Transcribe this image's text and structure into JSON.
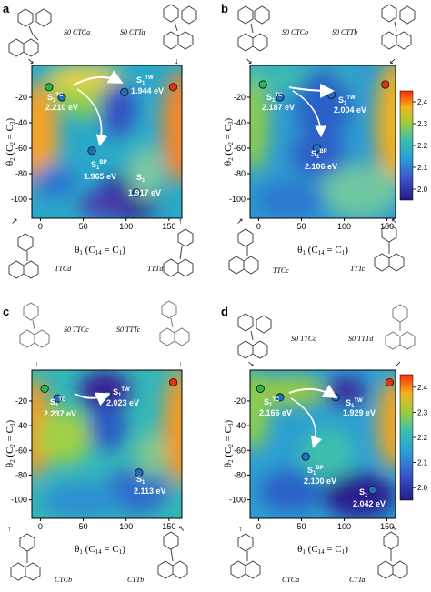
{
  "colors": {
    "low": "#241a86",
    "mid": "#2aa9c9",
    "high": "#ff2a08",
    "dot_green": "#2fb34b",
    "dot_red": "#e23214",
    "dot_blue": "#1e6fc0",
    "arrow": "#ffffff",
    "struct": "#333333"
  },
  "chart_data": [
    {
      "panel": "a",
      "type": "heatmap",
      "xlabel": "θ1 (C14 = C1)",
      "ylabel": "θ2 (C2 = C3)",
      "xlim": [
        -10,
        165
      ],
      "ylim": [
        -115,
        5
      ],
      "xticks": [
        0,
        50,
        100,
        150
      ],
      "yticks": [
        -100,
        -80,
        -60,
        -40,
        -20
      ],
      "colorbar": false,
      "top_labels": [
        "S0 CTCa",
        "S0 CTTa"
      ],
      "bottom_labels": [
        "TTCd",
        "TTTd"
      ],
      "points": [
        {
          "x": 10,
          "y": -12,
          "color": "green"
        },
        {
          "x": 155,
          "y": -12,
          "color": "red"
        },
        {
          "x": 25,
          "y": -20,
          "color": "blue"
        },
        {
          "x": 98,
          "y": -16,
          "color": "blue"
        },
        {
          "x": 60,
          "y": -62,
          "color": "blue"
        },
        {
          "x": 112,
          "y": -95,
          "color": "blue"
        }
      ],
      "annotations": [
        {
          "state": "S1",
          "sup": "TC",
          "energy": "2.210 eV"
        },
        {
          "state": "S1",
          "sup": "TW",
          "energy": "1.944 eV"
        },
        {
          "state": "S1",
          "sup": "BP",
          "energy": "1.965 eV"
        },
        {
          "state": "S1",
          "sup": "",
          "energy": "1.917 eV"
        }
      ],
      "arrows": [
        [
          "TC",
          "TW"
        ],
        [
          "TC",
          "BP"
        ]
      ]
    },
    {
      "panel": "b",
      "type": "heatmap",
      "xlabel": "θ1 (C14 = C1)",
      "ylabel": "θ2 (C2 = C3)",
      "xlim": [
        -10,
        160
      ],
      "ylim": [
        -115,
        5
      ],
      "xticks": [
        0,
        50,
        100,
        150
      ],
      "yticks": [
        -100,
        -80,
        -60,
        -40,
        -20
      ],
      "colorbar": true,
      "colorbar_ticks": [
        2.0,
        2.1,
        2.2,
        2.3,
        2.4
      ],
      "top_labels": [
        "S0 CTCb",
        "S0 CTTb"
      ],
      "bottom_labels": [
        "TTCc",
        "TTTc"
      ],
      "points": [
        {
          "x": 5,
          "y": -10,
          "color": "green"
        },
        {
          "x": 148,
          "y": -10,
          "color": "red"
        },
        {
          "x": 25,
          "y": -20,
          "color": "blue"
        },
        {
          "x": 85,
          "y": -18,
          "color": "blue"
        },
        {
          "x": 68,
          "y": -60,
          "color": "blue"
        }
      ],
      "annotations": [
        {
          "state": "S1",
          "sup": "TC",
          "energy": "2.187 eV"
        },
        {
          "state": "S1",
          "sup": "TW",
          "energy": "2.004 eV"
        },
        {
          "state": "S1",
          "sup": "BP",
          "energy": "2.106 eV"
        }
      ],
      "arrows": [
        [
          "TC",
          "TW"
        ],
        [
          "TC",
          "BP"
        ]
      ]
    },
    {
      "panel": "c",
      "type": "heatmap",
      "xlabel": "θ1 (C14 = C1)",
      "ylabel": "θ2 (C2 = C3)",
      "xlim": [
        -10,
        165
      ],
      "ylim": [
        -115,
        5
      ],
      "xticks": [
        0,
        50,
        100,
        150
      ],
      "yticks": [
        -100,
        -80,
        -60,
        -40,
        -20
      ],
      "colorbar": false,
      "top_labels": [
        "S0 TTCc",
        "S0 TTTc"
      ],
      "bottom_labels": [
        "CTCb",
        "CTTb"
      ],
      "points": [
        {
          "x": 5,
          "y": -10,
          "color": "green"
        },
        {
          "x": 155,
          "y": -5,
          "color": "red"
        },
        {
          "x": 20,
          "y": -18,
          "color": "blue"
        },
        {
          "x": 78,
          "y": -15,
          "color": "blue"
        },
        {
          "x": 115,
          "y": -78,
          "color": "blue"
        }
      ],
      "annotations": [
        {
          "state": "S1",
          "sup": "TC",
          "energy": "2.237 eV"
        },
        {
          "state": "S1",
          "sup": "TW",
          "energy": "2.023 eV"
        },
        {
          "state": "S1",
          "sup": "",
          "energy": "2.113 eV"
        }
      ],
      "arrows": [
        [
          "TC",
          "TW"
        ]
      ]
    },
    {
      "panel": "d",
      "type": "heatmap",
      "xlabel": "θ1 (C14 = C1)",
      "ylabel": "θ2 (C2 = C3)",
      "xlim": [
        -10,
        160
      ],
      "ylim": [
        -115,
        5
      ],
      "xticks": [
        0,
        50,
        100,
        150
      ],
      "yticks": [
        -100,
        -80,
        -60,
        -40,
        -20
      ],
      "colorbar": true,
      "colorbar_ticks": [
        2.0,
        2.1,
        2.2,
        2.3,
        2.4
      ],
      "top_labels": [
        "S0 TTCd",
        "S0 TTTd"
      ],
      "bottom_labels": [
        "CTCa",
        "CTTa"
      ],
      "points": [
        {
          "x": 2,
          "y": -10,
          "color": "green"
        },
        {
          "x": 153,
          "y": -5,
          "color": "red"
        },
        {
          "x": 25,
          "y": -17,
          "color": "blue"
        },
        {
          "x": 90,
          "y": -17,
          "color": "blue"
        },
        {
          "x": 55,
          "y": -65,
          "color": "blue"
        },
        {
          "x": 133,
          "y": -92,
          "color": "blue"
        }
      ],
      "annotations": [
        {
          "state": "S1",
          "sup": "TC",
          "energy": "2.166 eV"
        },
        {
          "state": "S1",
          "sup": "TW",
          "energy": "1.929 eV"
        },
        {
          "state": "S1",
          "sup": "BP",
          "energy": "2.100 eV"
        },
        {
          "state": "S1",
          "sup": "",
          "energy": "2.042 eV"
        }
      ],
      "arrows": [
        [
          "TC",
          "TW"
        ],
        [
          "TC",
          "BP"
        ]
      ]
    }
  ]
}
